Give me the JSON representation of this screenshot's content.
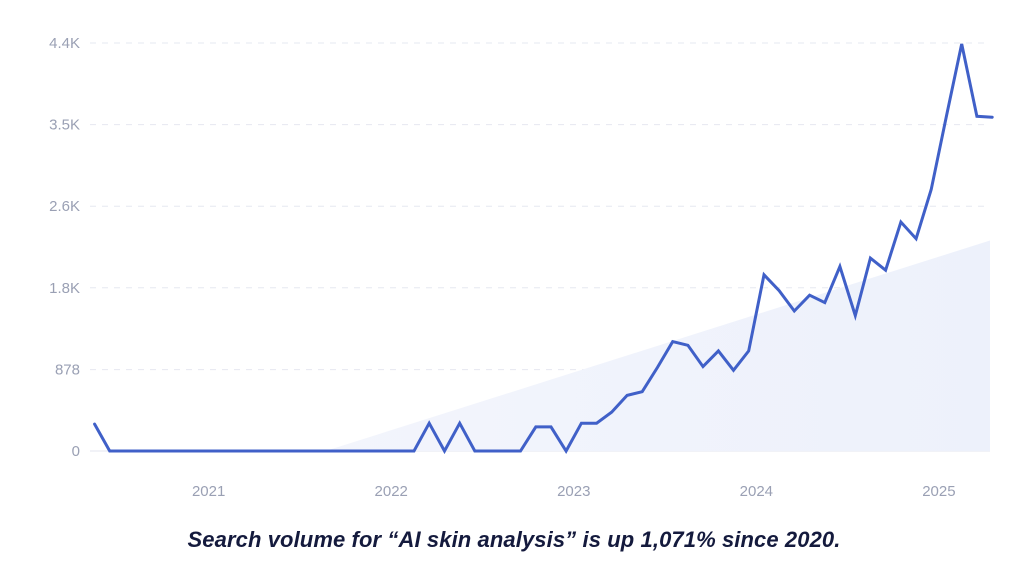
{
  "chart_data": {
    "type": "line",
    "title": "",
    "xlabel": "",
    "ylabel": "",
    "x_range": [
      2020.35,
      2025.28
    ],
    "ylim": [
      0,
      4400
    ],
    "y_ticks": [
      {
        "label": "0",
        "value": 0
      },
      {
        "label": "878",
        "value": 878
      },
      {
        "label": "1.8K",
        "value": 1760
      },
      {
        "label": "2.6K",
        "value": 2640
      },
      {
        "label": "3.5K",
        "value": 3520
      },
      {
        "label": "4.4K",
        "value": 4400
      }
    ],
    "x_ticks": [
      {
        "label": "2021",
        "value": 2021.0
      },
      {
        "label": "2022",
        "value": 2022.0
      },
      {
        "label": "2023",
        "value": 2023.0
      },
      {
        "label": "2024",
        "value": 2024.0
      },
      {
        "label": "2025",
        "value": 2025.0
      }
    ],
    "series": [
      {
        "name": "Search volume",
        "color": "#4060c8",
        "x": [
          2020.375,
          2020.458,
          2020.542,
          2020.625,
          2020.708,
          2020.792,
          2020.875,
          2020.958,
          2021.042,
          2021.125,
          2021.208,
          2021.292,
          2021.375,
          2021.458,
          2021.542,
          2021.625,
          2021.708,
          2021.792,
          2021.875,
          2021.958,
          2022.042,
          2022.125,
          2022.208,
          2022.292,
          2022.375,
          2022.458,
          2022.542,
          2022.625,
          2022.708,
          2022.792,
          2022.875,
          2022.958,
          2023.042,
          2023.125,
          2023.208,
          2023.292,
          2023.375,
          2023.458,
          2023.542,
          2023.625,
          2023.708,
          2023.792,
          2023.875,
          2023.958,
          2024.042,
          2024.125,
          2024.208,
          2024.292,
          2024.375,
          2024.458,
          2024.542,
          2024.625,
          2024.708,
          2024.792,
          2024.875,
          2024.958,
          2025.042,
          2025.125,
          2025.208,
          2025.292
        ],
        "values": [
          290,
          0,
          0,
          0,
          0,
          0,
          0,
          0,
          0,
          0,
          0,
          0,
          0,
          0,
          0,
          0,
          0,
          0,
          0,
          0,
          0,
          0,
          300,
          0,
          300,
          0,
          0,
          0,
          0,
          260,
          260,
          0,
          300,
          300,
          420,
          600,
          640,
          900,
          1180,
          1140,
          910,
          1080,
          870,
          1080,
          1900,
          1730,
          1510,
          1680,
          1600,
          1990,
          1460,
          2080,
          1950,
          2470,
          2290,
          2820,
          3620,
          4390,
          3610,
          3600
        ]
      }
    ],
    "trend_area": {
      "x": [
        2021.64,
        2025.28
      ],
      "values": [
        0,
        2270
      ],
      "color": "#edf1fb"
    },
    "grid": true,
    "legend": "none"
  },
  "caption": "Search volume for “AI skin analysis” is up 1,071% since 2020."
}
